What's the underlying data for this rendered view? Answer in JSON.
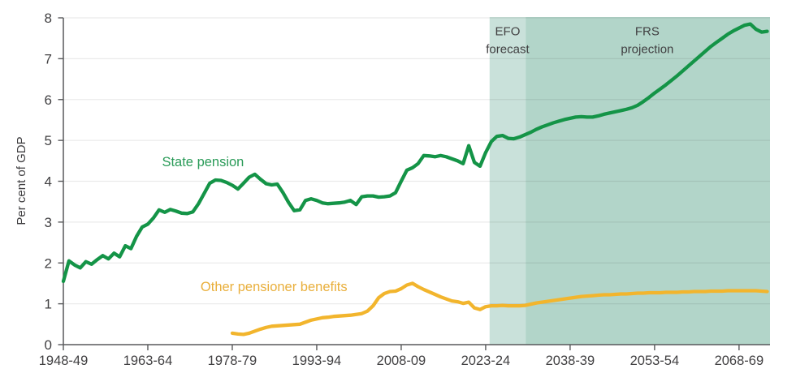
{
  "chart_data": {
    "type": "line",
    "title": "",
    "ylabel": "Per cent of GDP",
    "ylim": [
      0,
      8
    ],
    "yticks": [
      0,
      1,
      2,
      3,
      4,
      5,
      6,
      7,
      8
    ],
    "x_range": [
      1948,
      2073.5
    ],
    "grid": "horizontal",
    "xticks": [
      {
        "year": 1948,
        "label": "1948-49"
      },
      {
        "year": 1963,
        "label": "1963-64"
      },
      {
        "year": 1978,
        "label": "1978-79"
      },
      {
        "year": 1993,
        "label": "1993-94"
      },
      {
        "year": 2008,
        "label": "2008-09"
      },
      {
        "year": 2023,
        "label": "2023-24"
      },
      {
        "year": 2038,
        "label": "2038-39"
      },
      {
        "year": 2053,
        "label": "2053-54"
      },
      {
        "year": 2068,
        "label": "2068-69"
      }
    ],
    "regions": [
      {
        "id": "efo-forecast",
        "label": "EFO forecast",
        "from": 2023.7,
        "to": 2030.1,
        "color": "#c9e1da"
      },
      {
        "id": "frs-projection",
        "label": "FRS projection",
        "from": 2030.1,
        "to": 2073.5,
        "color": "#b2d5c9"
      }
    ],
    "series": [
      {
        "id": "other-pensioner-benefits",
        "name": "Other pensioner benefits",
        "color": "#f2b52d",
        "points": [
          [
            1978,
            0.28
          ],
          [
            1979,
            0.26
          ],
          [
            1980,
            0.25
          ],
          [
            1981,
            0.28
          ],
          [
            1982,
            0.33
          ],
          [
            1983,
            0.38
          ],
          [
            1984,
            0.42
          ],
          [
            1985,
            0.45
          ],
          [
            1986,
            0.46
          ],
          [
            1987,
            0.47
          ],
          [
            1988,
            0.48
          ],
          [
            1989,
            0.49
          ],
          [
            1990,
            0.5
          ],
          [
            1991,
            0.55
          ],
          [
            1992,
            0.6
          ],
          [
            1993,
            0.63
          ],
          [
            1994,
            0.66
          ],
          [
            1995,
            0.67
          ],
          [
            1996,
            0.69
          ],
          [
            1997,
            0.7
          ],
          [
            1998,
            0.71
          ],
          [
            1999,
            0.72
          ],
          [
            2000,
            0.74
          ],
          [
            2001,
            0.76
          ],
          [
            2002,
            0.82
          ],
          [
            2003,
            0.95
          ],
          [
            2004,
            1.15
          ],
          [
            2005,
            1.25
          ],
          [
            2006,
            1.3
          ],
          [
            2007,
            1.31
          ],
          [
            2008,
            1.37
          ],
          [
            2009,
            1.46
          ],
          [
            2010,
            1.5
          ],
          [
            2011,
            1.42
          ],
          [
            2012,
            1.35
          ],
          [
            2013,
            1.29
          ],
          [
            2014,
            1.23
          ],
          [
            2015,
            1.17
          ],
          [
            2016,
            1.12
          ],
          [
            2017,
            1.07
          ],
          [
            2018,
            1.05
          ],
          [
            2019,
            1.01
          ],
          [
            2020,
            1.04
          ],
          [
            2021,
            0.9
          ],
          [
            2022,
            0.86
          ],
          [
            2023,
            0.93
          ],
          [
            2024,
            0.95
          ],
          [
            2025,
            0.95
          ],
          [
            2026,
            0.96
          ],
          [
            2027,
            0.95
          ],
          [
            2028,
            0.95
          ],
          [
            2029,
            0.95
          ],
          [
            2030,
            0.96
          ],
          [
            2031,
            0.99
          ],
          [
            2032,
            1.02
          ],
          [
            2033,
            1.04
          ],
          [
            2034,
            1.06
          ],
          [
            2035,
            1.08
          ],
          [
            2036,
            1.1
          ],
          [
            2037,
            1.12
          ],
          [
            2038,
            1.14
          ],
          [
            2039,
            1.16
          ],
          [
            2040,
            1.18
          ],
          [
            2041,
            1.19
          ],
          [
            2042,
            1.2
          ],
          [
            2043,
            1.21
          ],
          [
            2044,
            1.22
          ],
          [
            2045,
            1.22
          ],
          [
            2046,
            1.23
          ],
          [
            2047,
            1.24
          ],
          [
            2048,
            1.24
          ],
          [
            2049,
            1.25
          ],
          [
            2050,
            1.26
          ],
          [
            2051,
            1.26
          ],
          [
            2052,
            1.27
          ],
          [
            2053,
            1.27
          ],
          [
            2054,
            1.27
          ],
          [
            2055,
            1.28
          ],
          [
            2056,
            1.28
          ],
          [
            2057,
            1.28
          ],
          [
            2058,
            1.29
          ],
          [
            2059,
            1.29
          ],
          [
            2060,
            1.3
          ],
          [
            2061,
            1.3
          ],
          [
            2062,
            1.3
          ],
          [
            2063,
            1.31
          ],
          [
            2064,
            1.31
          ],
          [
            2065,
            1.31
          ],
          [
            2066,
            1.32
          ],
          [
            2067,
            1.32
          ],
          [
            2068,
            1.32
          ],
          [
            2069,
            1.32
          ],
          [
            2070,
            1.32
          ],
          [
            2071,
            1.32
          ],
          [
            2072,
            1.31
          ],
          [
            2073,
            1.3
          ]
        ]
      },
      {
        "id": "state-pension",
        "name": "State pension",
        "color": "#149447",
        "points": [
          [
            1948,
            1.55
          ],
          [
            1949,
            2.05
          ],
          [
            1950,
            1.95
          ],
          [
            1951,
            1.88
          ],
          [
            1952,
            2.03
          ],
          [
            1953,
            1.97
          ],
          [
            1954,
            2.08
          ],
          [
            1955,
            2.18
          ],
          [
            1956,
            2.1
          ],
          [
            1957,
            2.24
          ],
          [
            1958,
            2.15
          ],
          [
            1959,
            2.42
          ],
          [
            1960,
            2.35
          ],
          [
            1961,
            2.65
          ],
          [
            1962,
            2.88
          ],
          [
            1963,
            2.95
          ],
          [
            1964,
            3.1
          ],
          [
            1965,
            3.3
          ],
          [
            1966,
            3.24
          ],
          [
            1967,
            3.31
          ],
          [
            1968,
            3.27
          ],
          [
            1969,
            3.22
          ],
          [
            1970,
            3.21
          ],
          [
            1971,
            3.25
          ],
          [
            1972,
            3.45
          ],
          [
            1973,
            3.7
          ],
          [
            1974,
            3.95
          ],
          [
            1975,
            4.03
          ],
          [
            1976,
            4.02
          ],
          [
            1977,
            3.97
          ],
          [
            1978,
            3.9
          ],
          [
            1979,
            3.81
          ],
          [
            1980,
            3.95
          ],
          [
            1981,
            4.1
          ],
          [
            1982,
            4.17
          ],
          [
            1983,
            4.05
          ],
          [
            1984,
            3.94
          ],
          [
            1985,
            3.91
          ],
          [
            1986,
            3.93
          ],
          [
            1987,
            3.72
          ],
          [
            1988,
            3.48
          ],
          [
            1989,
            3.28
          ],
          [
            1990,
            3.3
          ],
          [
            1991,
            3.53
          ],
          [
            1992,
            3.57
          ],
          [
            1993,
            3.53
          ],
          [
            1994,
            3.47
          ],
          [
            1995,
            3.45
          ],
          [
            1996,
            3.46
          ],
          [
            1997,
            3.47
          ],
          [
            1998,
            3.49
          ],
          [
            1999,
            3.53
          ],
          [
            2000,
            3.43
          ],
          [
            2001,
            3.62
          ],
          [
            2002,
            3.64
          ],
          [
            2003,
            3.64
          ],
          [
            2004,
            3.61
          ],
          [
            2005,
            3.62
          ],
          [
            2006,
            3.64
          ],
          [
            2007,
            3.72
          ],
          [
            2008,
            4.0
          ],
          [
            2009,
            4.27
          ],
          [
            2010,
            4.33
          ],
          [
            2011,
            4.43
          ],
          [
            2012,
            4.63
          ],
          [
            2013,
            4.62
          ],
          [
            2014,
            4.6
          ],
          [
            2015,
            4.63
          ],
          [
            2016,
            4.6
          ],
          [
            2017,
            4.55
          ],
          [
            2018,
            4.5
          ],
          [
            2019,
            4.43
          ],
          [
            2020,
            4.87
          ],
          [
            2021,
            4.46
          ],
          [
            2022,
            4.37
          ],
          [
            2023,
            4.7
          ],
          [
            2024,
            4.97
          ],
          [
            2025,
            5.1
          ],
          [
            2026,
            5.12
          ],
          [
            2027,
            5.05
          ],
          [
            2028,
            5.04
          ],
          [
            2029,
            5.08
          ],
          [
            2030,
            5.14
          ],
          [
            2031,
            5.2
          ],
          [
            2032,
            5.27
          ],
          [
            2033,
            5.33
          ],
          [
            2034,
            5.38
          ],
          [
            2035,
            5.43
          ],
          [
            2036,
            5.47
          ],
          [
            2037,
            5.51
          ],
          [
            2038,
            5.54
          ],
          [
            2039,
            5.57
          ],
          [
            2040,
            5.58
          ],
          [
            2041,
            5.57
          ],
          [
            2042,
            5.57
          ],
          [
            2043,
            5.6
          ],
          [
            2044,
            5.64
          ],
          [
            2045,
            5.67
          ],
          [
            2046,
            5.7
          ],
          [
            2047,
            5.73
          ],
          [
            2048,
            5.76
          ],
          [
            2049,
            5.8
          ],
          [
            2050,
            5.86
          ],
          [
            2051,
            5.95
          ],
          [
            2052,
            6.05
          ],
          [
            2053,
            6.16
          ],
          [
            2054,
            6.26
          ],
          [
            2055,
            6.36
          ],
          [
            2056,
            6.47
          ],
          [
            2057,
            6.58
          ],
          [
            2058,
            6.7
          ],
          [
            2059,
            6.82
          ],
          [
            2060,
            6.94
          ],
          [
            2061,
            7.06
          ],
          [
            2062,
            7.18
          ],
          [
            2063,
            7.3
          ],
          [
            2064,
            7.4
          ],
          [
            2065,
            7.5
          ],
          [
            2066,
            7.6
          ],
          [
            2067,
            7.68
          ],
          [
            2068,
            7.75
          ],
          [
            2069,
            7.82
          ],
          [
            2070,
            7.85
          ],
          [
            2071,
            7.72
          ],
          [
            2072,
            7.65
          ],
          [
            2073,
            7.67
          ]
        ]
      }
    ],
    "annotations": [
      {
        "id": "label-state-pension",
        "lines": [
          "State pension"
        ],
        "x_year": 1972.8,
        "y_value": 4.37,
        "color": "#2a9b58",
        "size": 16.5
      },
      {
        "id": "label-other-benefits",
        "lines": [
          "Other pensioner benefits"
        ],
        "x_year": 1985.4,
        "y_value": 1.31,
        "color": "#e9af3c",
        "size": 16.5
      },
      {
        "id": "label-efo-forecast",
        "lines": [
          "EFO",
          "forecast"
        ],
        "x_year": 2026.9,
        "y_value": 7.57,
        "color": "#414042",
        "size": 15
      },
      {
        "id": "label-frs-projection",
        "lines": [
          "FRS",
          "projection"
        ],
        "x_year": 2051.7,
        "y_value": 7.57,
        "color": "#414042",
        "size": 15
      }
    ],
    "axis_color": "#58595b",
    "tick_text_color": "#414042"
  }
}
